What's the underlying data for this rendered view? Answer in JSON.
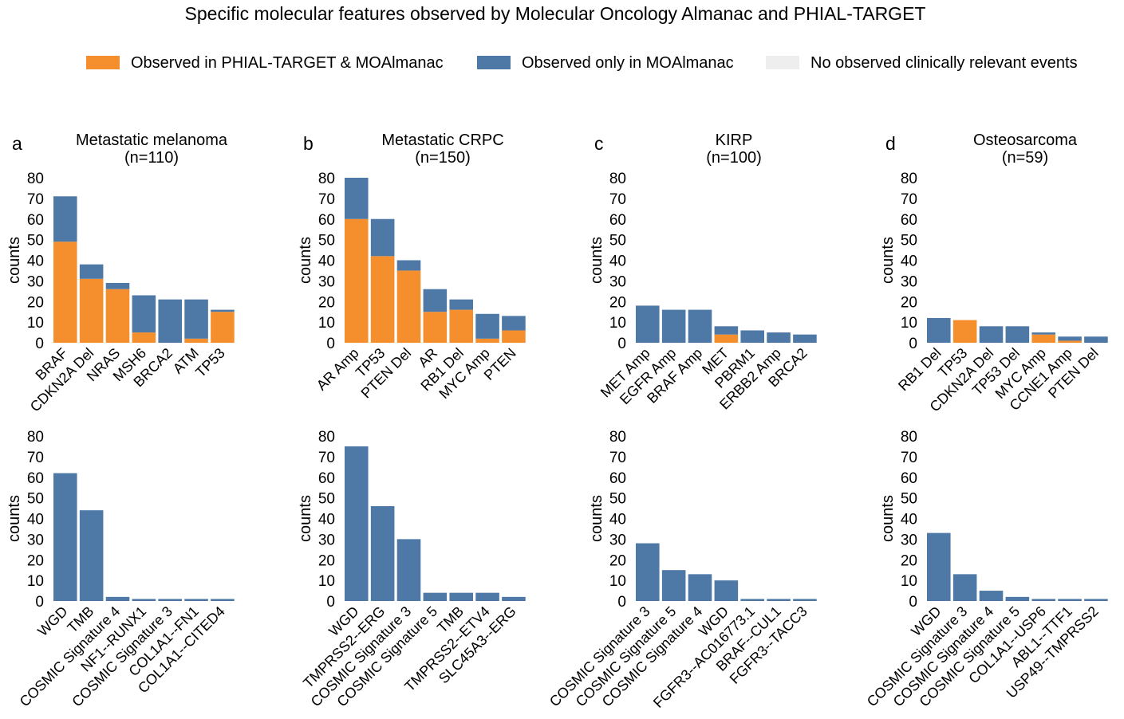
{
  "title": "Specific molecular features observed by Molecular Oncology Almanac and PHIAL-TARGET",
  "legend": {
    "placement": "top-center",
    "items": [
      {
        "label": "Observed in PHIAL-TARGET & MOAlmanac",
        "color": "#F58F2E"
      },
      {
        "label": "Observed only in MOAlmanac",
        "color": "#4E79A7"
      },
      {
        "label": "No observed clinically relevant events",
        "color": "#EEEEEE"
      }
    ]
  },
  "colors": {
    "both": "#F58F2E",
    "moa_only": "#4E79A7",
    "none": "#EEEEEE"
  },
  "chart_data": [
    {
      "type": "bar",
      "stacked": true,
      "panel": "a",
      "title": "Metastatic melanoma\n(n=110)",
      "ylabel": "counts",
      "ylim": [
        0,
        80
      ],
      "yticks": [
        0,
        10,
        20,
        30,
        40,
        50,
        60,
        70,
        80
      ],
      "grid": false,
      "categories": [
        "BRAF",
        "CDKN2A Del",
        "NRAS",
        "MSH6",
        "BRCA2",
        "ATM",
        "TP53"
      ],
      "series": [
        {
          "name": "Observed in PHIAL-TARGET & MOAlmanac",
          "values": [
            49,
            31,
            26,
            5,
            0,
            2,
            15
          ]
        },
        {
          "name": "Observed only in MOAlmanac",
          "values": [
            22,
            7,
            3,
            18,
            21,
            19,
            1
          ]
        }
      ]
    },
    {
      "type": "bar",
      "stacked": true,
      "panel": "b",
      "title": "Metastatic CRPC\n(n=150)",
      "ylabel": "counts",
      "ylim": [
        0,
        80
      ],
      "yticks": [
        0,
        10,
        20,
        30,
        40,
        50,
        60,
        70,
        80
      ],
      "grid": false,
      "categories": [
        "AR Amp",
        "TP53",
        "PTEN Del",
        "AR",
        "RB1 Del",
        "MYC Amp",
        "PTEN"
      ],
      "series": [
        {
          "name": "Observed in PHIAL-TARGET & MOAlmanac",
          "values": [
            60,
            42,
            35,
            15,
            16,
            2,
            6
          ]
        },
        {
          "name": "Observed only in MOAlmanac",
          "values": [
            20,
            18,
            5,
            11,
            5,
            12,
            7
          ]
        }
      ]
    },
    {
      "type": "bar",
      "stacked": true,
      "panel": "c",
      "title": "KIRP\n(n=100)",
      "ylabel": "counts",
      "ylim": [
        0,
        80
      ],
      "yticks": [
        0,
        10,
        20,
        30,
        40,
        50,
        60,
        70,
        80
      ],
      "grid": false,
      "categories": [
        "MET Amp",
        "EGFR Amp",
        "BRAF Amp",
        "MET",
        "PBRM1",
        "ERBB2 Amp",
        "BRCA2"
      ],
      "series": [
        {
          "name": "Observed in PHIAL-TARGET & MOAlmanac",
          "values": [
            0,
            0,
            0,
            4,
            0,
            0,
            0
          ]
        },
        {
          "name": "Observed only in MOAlmanac",
          "values": [
            18,
            16,
            16,
            4,
            6,
            5,
            4
          ]
        }
      ]
    },
    {
      "type": "bar",
      "stacked": true,
      "panel": "d",
      "title": "Osteosarcoma\n(n=59)",
      "ylabel": "counts",
      "ylim": [
        0,
        80
      ],
      "yticks": [
        0,
        10,
        20,
        30,
        40,
        50,
        60,
        70,
        80
      ],
      "grid": false,
      "categories": [
        "RB1 Del",
        "TP53",
        "CDKN2A Del",
        "TP53 Del",
        "MYC Amp",
        "CCNE1 Amp",
        "PTEN Del"
      ],
      "series": [
        {
          "name": "Observed in PHIAL-TARGET & MOAlmanac",
          "values": [
            0,
            11,
            0,
            0,
            4,
            1,
            0
          ]
        },
        {
          "name": "Observed only in MOAlmanac",
          "values": [
            12,
            0,
            8,
            8,
            1,
            2,
            3
          ]
        }
      ]
    },
    {
      "type": "bar",
      "stacked": true,
      "panel": "a-bottom",
      "title": "",
      "ylabel": "counts",
      "ylim": [
        0,
        80
      ],
      "yticks": [
        0,
        10,
        20,
        30,
        40,
        50,
        60,
        70,
        80
      ],
      "grid": false,
      "categories": [
        "WGD",
        "TMB",
        "COSMIC Signature 4",
        "NF1--RUNX1",
        "COSMIC Signature 3",
        "COL1A1--FN1",
        "COL1A1--CITED4"
      ],
      "series": [
        {
          "name": "Observed in PHIAL-TARGET & MOAlmanac",
          "values": [
            0,
            0,
            0,
            0,
            0,
            0,
            0
          ]
        },
        {
          "name": "Observed only in MOAlmanac",
          "values": [
            62,
            44,
            2,
            1,
            1,
            1,
            1
          ]
        }
      ]
    },
    {
      "type": "bar",
      "stacked": true,
      "panel": "b-bottom",
      "title": "",
      "ylabel": "counts",
      "ylim": [
        0,
        80
      ],
      "yticks": [
        0,
        10,
        20,
        30,
        40,
        50,
        60,
        70,
        80
      ],
      "grid": false,
      "categories": [
        "WGD",
        "TMPRSS2--ERG",
        "COSMIC Signature 3",
        "COSMIC Signature 5",
        "TMB",
        "TMPRSS2--ETV4",
        "SLC45A3--ERG"
      ],
      "series": [
        {
          "name": "Observed in PHIAL-TARGET & MOAlmanac",
          "values": [
            0,
            0,
            0,
            0,
            0,
            0,
            0
          ]
        },
        {
          "name": "Observed only in MOAlmanac",
          "values": [
            75,
            46,
            30,
            4,
            4,
            4,
            2
          ]
        }
      ]
    },
    {
      "type": "bar",
      "stacked": true,
      "panel": "c-bottom",
      "title": "",
      "ylabel": "counts",
      "ylim": [
        0,
        80
      ],
      "yticks": [
        0,
        10,
        20,
        30,
        40,
        50,
        60,
        70,
        80
      ],
      "grid": false,
      "categories": [
        "COSMIC Signature 3",
        "COSMIC Signature 5",
        "COSMIC Signature 4",
        "WGD",
        "FGFR3--AC016773.1",
        "BRAF--CUL1",
        "FGFR3--TACC3"
      ],
      "series": [
        {
          "name": "Observed in PHIAL-TARGET & MOAlmanac",
          "values": [
            0,
            0,
            0,
            0,
            0,
            0,
            0
          ]
        },
        {
          "name": "Observed only in MOAlmanac",
          "values": [
            28,
            15,
            13,
            10,
            1,
            1,
            1
          ]
        }
      ]
    },
    {
      "type": "bar",
      "stacked": true,
      "panel": "d-bottom",
      "title": "",
      "ylabel": "counts",
      "ylim": [
        0,
        80
      ],
      "yticks": [
        0,
        10,
        20,
        30,
        40,
        50,
        60,
        70,
        80
      ],
      "grid": false,
      "categories": [
        "WGD",
        "COSMIC Signature 3",
        "COSMIC Signature 4",
        "COSMIC Signature 5",
        "COL1A1--USP6",
        "ABL1--TTF1",
        "USP49--TMPRSS2"
      ],
      "series": [
        {
          "name": "Observed in PHIAL-TARGET & MOAlmanac",
          "values": [
            0,
            0,
            0,
            0,
            0,
            0,
            0
          ]
        },
        {
          "name": "Observed only in MOAlmanac",
          "values": [
            33,
            13,
            5,
            2,
            1,
            1,
            1
          ]
        }
      ]
    }
  ]
}
